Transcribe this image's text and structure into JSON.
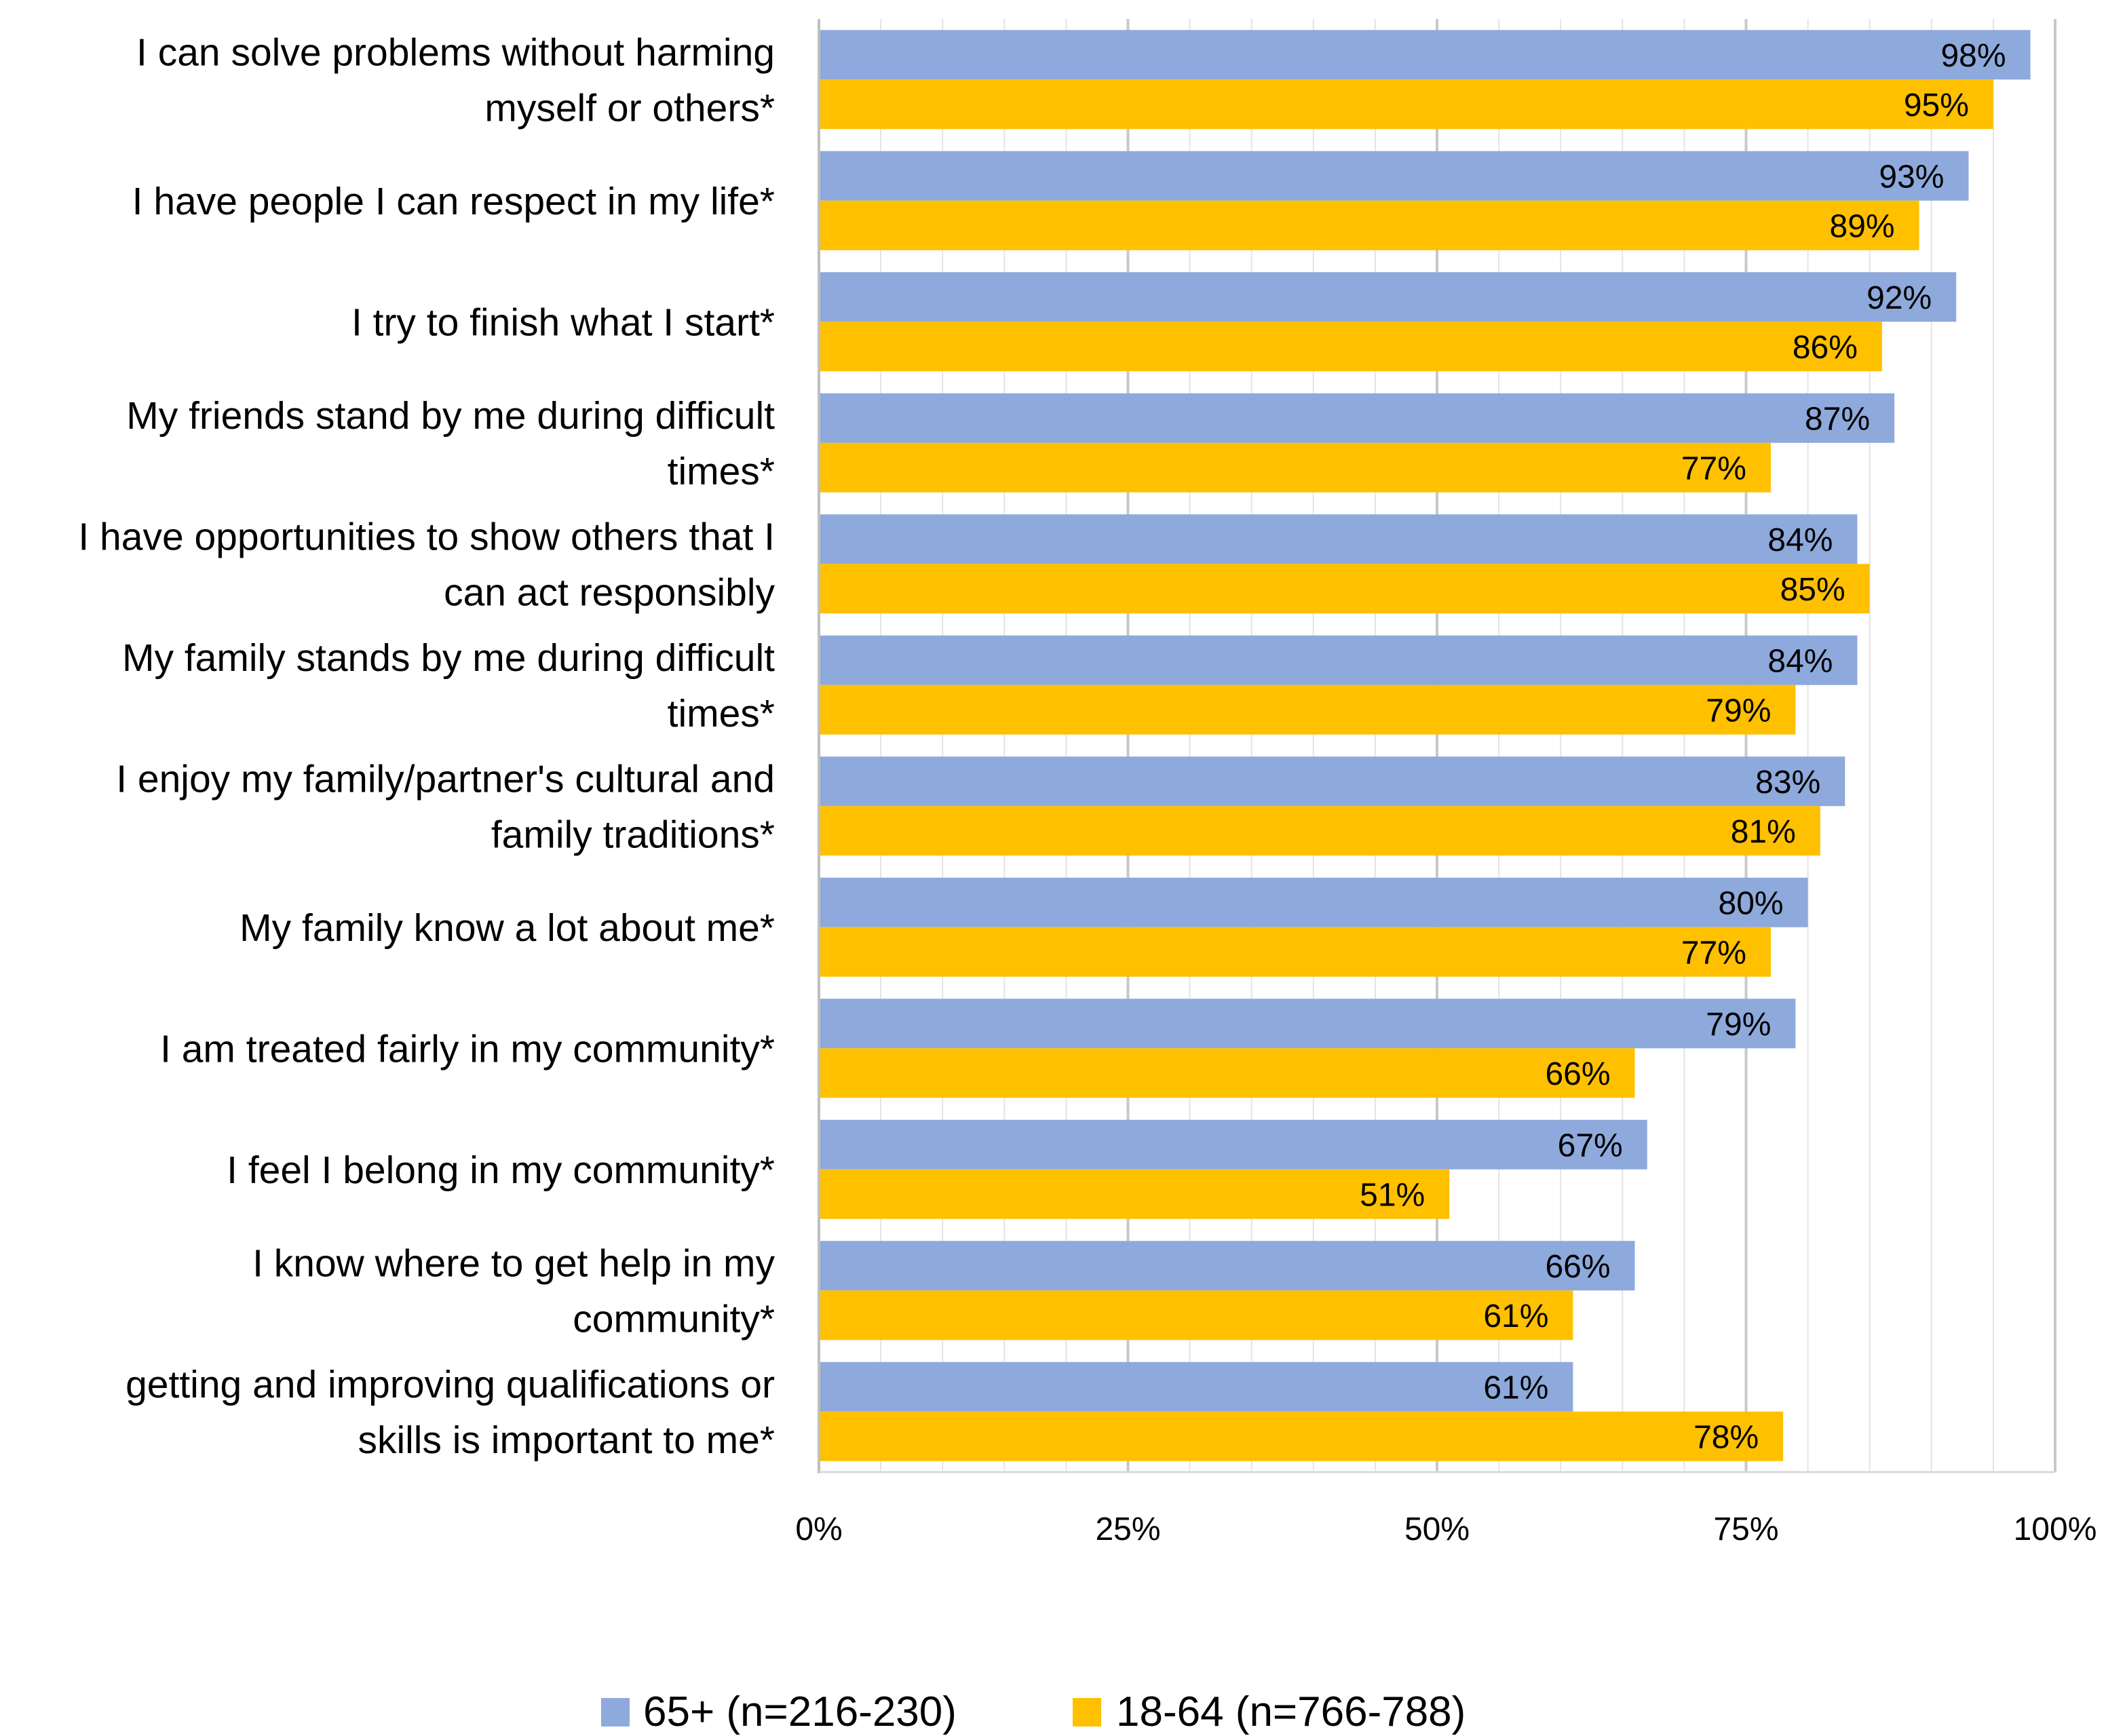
{
  "chart_data": {
    "type": "bar",
    "orientation": "horizontal",
    "categories": [
      [
        "I can solve problems without harming",
        "myself or others*"
      ],
      [
        "I have people I can respect in my life*"
      ],
      [
        "I try to finish what I start*"
      ],
      [
        "My friends stand by me during difficult",
        "times*"
      ],
      [
        "I have opportunities to show others that I",
        "can act responsibly"
      ],
      [
        "My family stands by me during difficult",
        "times*"
      ],
      [
        "I enjoy my family/partner's cultural and",
        "family traditions*"
      ],
      [
        "My family know a lot about me*"
      ],
      [
        "I am treated fairly in my community*"
      ],
      [
        "I feel I belong in my community*"
      ],
      [
        "I know where to get help in my",
        "community*"
      ],
      [
        "getting and improving qualifications or",
        "skills is important to me*"
      ]
    ],
    "series": [
      {
        "name": "65+ (n=216-230)",
        "color": "#8EA9DB",
        "values": [
          98,
          93,
          92,
          87,
          84,
          84,
          83,
          80,
          79,
          67,
          66,
          61
        ],
        "labels": [
          "98%",
          "93%",
          "92%",
          "87%",
          "84%",
          "84%",
          "83%",
          "80%",
          "79%",
          "67%",
          "66%",
          "61%"
        ]
      },
      {
        "name": "18-64 (n=766-788)",
        "color": "#FFC000",
        "values": [
          95,
          89,
          86,
          77,
          85,
          79,
          81,
          77,
          66,
          51,
          61,
          78
        ],
        "labels": [
          "95%",
          "89%",
          "86%",
          "77%",
          "85%",
          "79%",
          "81%",
          "77%",
          "66%",
          "51%",
          "61%",
          "78%"
        ]
      }
    ],
    "x_ticks": [
      "0%",
      "25%",
      "50%",
      "75%",
      "100%"
    ],
    "xlim": [
      0,
      100
    ],
    "grid": true,
    "legend_position": "bottom",
    "title": "",
    "xlabel": "",
    "ylabel": ""
  }
}
